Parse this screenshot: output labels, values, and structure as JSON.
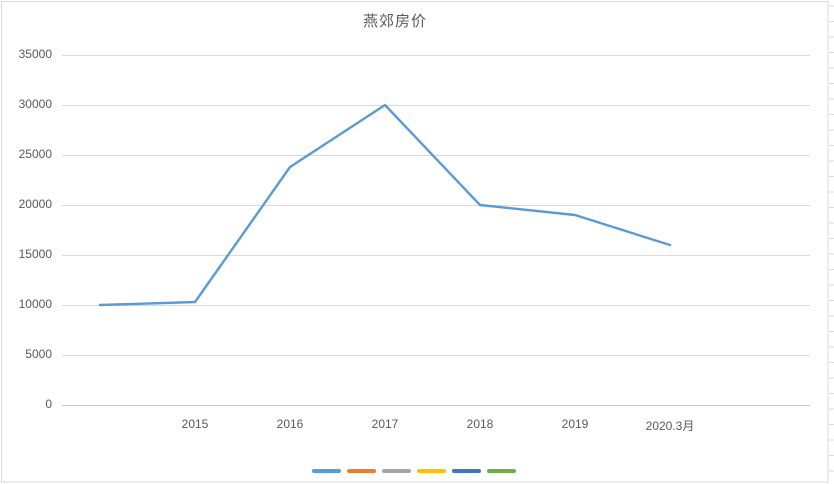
{
  "chart_data": {
    "type": "line",
    "title": "燕郊房价",
    "categories": [
      "",
      "2015",
      "2016",
      "2017",
      "2018",
      "2019",
      "2020.3月"
    ],
    "series": [
      {
        "color": "#5B9BD5",
        "values": [
          10000,
          10300,
          23800,
          30000,
          20000,
          19000,
          16000
        ]
      }
    ],
    "yticks": [
      0,
      5000,
      10000,
      15000,
      20000,
      25000,
      30000,
      35000
    ],
    "ylim": [
      0,
      35000
    ],
    "grid": true,
    "legend": {
      "position": "bottom",
      "labels_visible": false,
      "entries": [
        {
          "color": "#5B9BD5"
        },
        {
          "color": "#ED7D31"
        },
        {
          "color": "#A5A5A5"
        },
        {
          "color": "#FFC000"
        },
        {
          "color": "#4472C4"
        },
        {
          "color": "#70AD47"
        }
      ]
    },
    "colors": {
      "gridline": "#d9d9d9",
      "axis_line": "#c6c6c6",
      "label_text": "#595959",
      "chart_border": "#d9d9d9"
    }
  }
}
